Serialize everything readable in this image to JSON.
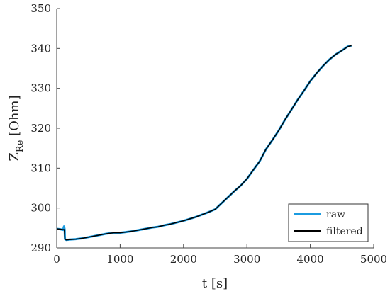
{
  "chart_data": {
    "type": "line",
    "title": "",
    "xlabel": "t [s]",
    "ylabel": "Z",
    "ylabel_subscript": "Re",
    "ylabel_unit": "[Ohm]",
    "xlim": [
      0,
      5000
    ],
    "ylim": [
      290,
      350
    ],
    "xticks": [
      0,
      1000,
      2000,
      3000,
      4000,
      5000
    ],
    "yticks": [
      290,
      300,
      310,
      320,
      330,
      340,
      350
    ],
    "grid": false,
    "legend_position": "bottom-right",
    "colors": {
      "raw": "#1b9be0",
      "filtered": "#000000",
      "axis": "#444444"
    },
    "series": [
      {
        "name": "raw",
        "x": [
          0,
          50,
          100,
          115,
          125,
          130,
          150,
          200,
          300,
          400,
          500,
          600,
          700,
          800,
          900,
          1000,
          1100,
          1200,
          1300,
          1400,
          1500,
          1600,
          1700,
          1800,
          1900,
          2000,
          2100,
          2200,
          2300,
          2400,
          2500,
          2600,
          2700,
          2800,
          2900,
          3000,
          3100,
          3200,
          3300,
          3400,
          3500,
          3600,
          3700,
          3800,
          3900,
          4000,
          4100,
          4200,
          4300,
          4400,
          4500,
          4600,
          4650
        ],
        "y": [
          294.8,
          294.7,
          294.5,
          295.4,
          294.6,
          292.2,
          292.0,
          292.1,
          292.2,
          292.4,
          292.7,
          293.0,
          293.3,
          293.6,
          293.8,
          293.8,
          294.0,
          294.2,
          294.5,
          294.8,
          295.1,
          295.3,
          295.7,
          296.0,
          296.4,
          296.8,
          297.3,
          297.8,
          298.4,
          299.0,
          299.7,
          301.2,
          302.7,
          304.2,
          305.6,
          307.3,
          309.5,
          311.7,
          314.7,
          317.0,
          319.4,
          322.1,
          324.6,
          327.1,
          329.4,
          331.8,
          333.8,
          335.6,
          337.2,
          338.5,
          339.5,
          340.6,
          340.7
        ]
      },
      {
        "name": "filtered",
        "x": [
          0,
          50,
          100,
          120,
          130,
          150,
          200,
          300,
          400,
          500,
          600,
          700,
          800,
          900,
          1000,
          1100,
          1200,
          1300,
          1400,
          1500,
          1600,
          1700,
          1800,
          1900,
          2000,
          2100,
          2200,
          2300,
          2400,
          2500,
          2600,
          2700,
          2800,
          2900,
          3000,
          3100,
          3200,
          3300,
          3400,
          3500,
          3600,
          3700,
          3800,
          3900,
          4000,
          4100,
          4200,
          4300,
          4400,
          4500,
          4600,
          4650
        ],
        "y": [
          294.8,
          294.7,
          294.6,
          294.6,
          292.2,
          292.0,
          292.1,
          292.2,
          292.4,
          292.7,
          293.0,
          293.3,
          293.6,
          293.8,
          293.8,
          294.0,
          294.2,
          294.5,
          294.8,
          295.1,
          295.3,
          295.7,
          296.0,
          296.4,
          296.8,
          297.3,
          297.8,
          298.4,
          299.0,
          299.7,
          301.2,
          302.7,
          304.2,
          305.6,
          307.3,
          309.5,
          311.7,
          314.7,
          317.0,
          319.4,
          322.1,
          324.6,
          327.1,
          329.4,
          331.8,
          333.8,
          335.6,
          337.2,
          338.5,
          339.5,
          340.5,
          340.7
        ]
      }
    ]
  }
}
